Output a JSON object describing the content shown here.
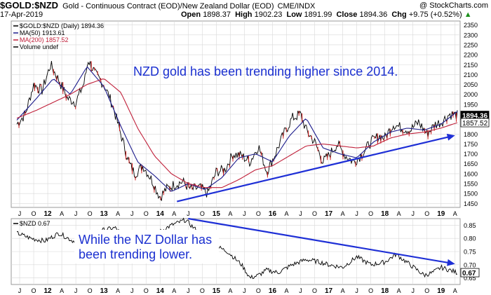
{
  "header": {
    "ticker": "$GOLD:$NZD",
    "description": "Gold - Continuous Contract (EOD)/New Zealand Dollar (EOD)",
    "exchange": "CME/INDX",
    "brand": "@ StockCharts.com",
    "date": "17-Apr-2019",
    "open_label": "Open",
    "open": "1898.37",
    "high_label": "High",
    "high": "1902.23",
    "low_label": "Low",
    "low": "1891.99",
    "close_label": "Close",
    "close": "1894.36",
    "chg_label": "Chg",
    "chg": "+9.75 (+0.52%)",
    "chg_arrow": "▲"
  },
  "colors": {
    "price": "#000000",
    "down_bar": "#d11a1a",
    "ma50": "#1c1c8c",
    "ma200": "#c0203a",
    "trendline": "#1e2fd6",
    "annotation": "#1a2fd0",
    "grid": "#d8d8d8",
    "last_box": "#000000"
  },
  "chart_data": [
    {
      "type": "line",
      "panel": "upper",
      "legend": [
        {
          "name": "$GOLD:$NZD (Daily) 1894.36"
        },
        {
          "name": "MA(50) 1913.61"
        },
        {
          "name": "MA(200) 1857.52"
        },
        {
          "name": "Volume undef"
        }
      ],
      "annotation": "NZD gold has been trending higher since 2014.",
      "x_ticks": [
        "J",
        "O",
        "12",
        "A",
        "J",
        "O",
        "13",
        "A",
        "J",
        "O",
        "14",
        "A",
        "J",
        "O",
        "15",
        "A",
        "J",
        "O",
        "16",
        "A",
        "J",
        "O",
        "17",
        "A",
        "J",
        "O",
        "18",
        "A",
        "J",
        "O",
        "19",
        "A"
      ],
      "y_ticks": [
        2350,
        2300,
        2250,
        2200,
        2150,
        2100,
        2050,
        2000,
        1950,
        1900,
        1850,
        1800,
        1750,
        1700,
        1650,
        1600,
        1550,
        1500,
        1450
      ],
      "ylim": [
        1430,
        2370
      ],
      "last_labels": [
        "1894.36",
        "1857.52"
      ],
      "series": [
        {
          "name": "$GOLD:$NZD",
          "x": [
            2011.45,
            2011.6,
            2011.75,
            2011.9,
            2012.05,
            2012.2,
            2012.35,
            2012.5,
            2012.65,
            2012.72,
            2012.85,
            2013.0,
            2013.15,
            2013.3,
            2013.45,
            2013.55,
            2013.7,
            2013.85,
            2014.0,
            2014.1,
            2014.25,
            2014.4,
            2014.55,
            2014.7,
            2014.85,
            2015.0,
            2015.15,
            2015.3,
            2015.45,
            2015.6,
            2015.75,
            2015.9,
            2016.05,
            2016.2,
            2016.35,
            2016.5,
            2016.6,
            2016.75,
            2016.9,
            2017.0,
            2017.15,
            2017.3,
            2017.45,
            2017.6,
            2017.75,
            2017.9,
            2018.0,
            2018.15,
            2018.3,
            2018.45,
            2018.6,
            2018.75,
            2018.9,
            2019.0,
            2019.15,
            2019.29
          ],
          "values": [
            1850,
            1900,
            2050,
            2020,
            2150,
            2070,
            1980,
            1960,
            2060,
            2175,
            2100,
            2050,
            1950,
            1800,
            1650,
            1600,
            1640,
            1570,
            1480,
            1520,
            1545,
            1560,
            1520,
            1530,
            1500,
            1610,
            1620,
            1700,
            1690,
            1660,
            1740,
            1610,
            1700,
            1800,
            1880,
            1900,
            1820,
            1760,
            1660,
            1690,
            1750,
            1690,
            1660,
            1700,
            1760,
            1790,
            1780,
            1850,
            1830,
            1820,
            1860,
            1800,
            1850,
            1860,
            1900,
            1894.36
          ]
        },
        {
          "name": "MA(50)",
          "x": [
            2011.45,
            2011.8,
            2012.1,
            2012.4,
            2012.7,
            2013.0,
            2013.3,
            2013.6,
            2013.9,
            2014.2,
            2014.5,
            2014.8,
            2015.1,
            2015.4,
            2015.7,
            2016.0,
            2016.3,
            2016.6,
            2016.9,
            2017.2,
            2017.5,
            2017.8,
            2018.1,
            2018.4,
            2018.7,
            2019.0,
            2019.29
          ],
          "values": [
            1870,
            1980,
            2080,
            2000,
            2140,
            2040,
            1840,
            1660,
            1590,
            1510,
            1550,
            1520,
            1580,
            1680,
            1700,
            1660,
            1790,
            1880,
            1730,
            1700,
            1680,
            1760,
            1810,
            1830,
            1820,
            1850,
            1913.61
          ]
        },
        {
          "name": "MA(200)",
          "x": [
            2011.45,
            2011.8,
            2012.1,
            2012.4,
            2012.7,
            2013.0,
            2013.3,
            2013.6,
            2013.9,
            2014.2,
            2014.5,
            2014.8,
            2015.1,
            2015.4,
            2015.7,
            2016.0,
            2016.3,
            2016.6,
            2016.9,
            2017.2,
            2017.5,
            2017.8,
            2018.1,
            2018.4,
            2018.7,
            2019.0,
            2019.29
          ],
          "values": [
            1880,
            1920,
            1960,
            2000,
            2050,
            2080,
            2010,
            1830,
            1690,
            1600,
            1550,
            1530,
            1530,
            1570,
            1620,
            1640,
            1690,
            1740,
            1750,
            1740,
            1730,
            1740,
            1780,
            1800,
            1810,
            1830,
            1857.52
          ]
        }
      ],
      "trendline": {
        "x": [
          2014.3,
          2019.2
        ],
        "values": [
          1460,
          1790
        ]
      }
    },
    {
      "type": "line",
      "panel": "lower",
      "legend": [
        {
          "name": "$NZD 0.67"
        }
      ],
      "annotation": "While the NZ Dollar has been trending lower.",
      "x_ticks": [
        "J",
        "O",
        "12",
        "A",
        "J",
        "O",
        "13",
        "A",
        "J",
        "O",
        "14",
        "A",
        "J",
        "O",
        "15",
        "A",
        "J",
        "O",
        "16",
        "A",
        "J",
        "O",
        "17",
        "A",
        "J",
        "O",
        "18",
        "A",
        "J",
        "O",
        "19",
        "A"
      ],
      "y_ticks": [
        0.85,
        0.8,
        0.75,
        0.7,
        0.65
      ],
      "ylim": [
        0.625,
        0.875
      ],
      "last_label": "0.67",
      "series": [
        {
          "name": "$NZD",
          "x": [
            2011.45,
            2011.7,
            2011.95,
            2012.2,
            2012.45,
            2012.7,
            2012.95,
            2013.2,
            2013.45,
            2013.7,
            2013.95,
            2014.2,
            2014.45,
            2014.7,
            2014.85,
            2015.0,
            2015.2,
            2015.45,
            2015.6,
            2015.75,
            2015.9,
            2016.1,
            2016.35,
            2016.6,
            2016.85,
            2017.0,
            2017.25,
            2017.5,
            2017.75,
            2018.0,
            2018.2,
            2018.45,
            2018.7,
            2018.85,
            2019.0,
            2019.15,
            2019.29
          ],
          "values": [
            0.82,
            0.8,
            0.79,
            0.82,
            0.79,
            0.81,
            0.83,
            0.84,
            0.79,
            0.8,
            0.82,
            0.85,
            0.87,
            0.82,
            0.79,
            0.77,
            0.75,
            0.7,
            0.65,
            0.66,
            0.68,
            0.67,
            0.7,
            0.72,
            0.71,
            0.7,
            0.69,
            0.73,
            0.7,
            0.71,
            0.74,
            0.7,
            0.66,
            0.67,
            0.69,
            0.68,
            0.67
          ]
        }
      ],
      "trendline": {
        "x": [
          2014.5,
          2019.2
        ],
        "values": [
          0.875,
          0.705
        ]
      }
    }
  ]
}
